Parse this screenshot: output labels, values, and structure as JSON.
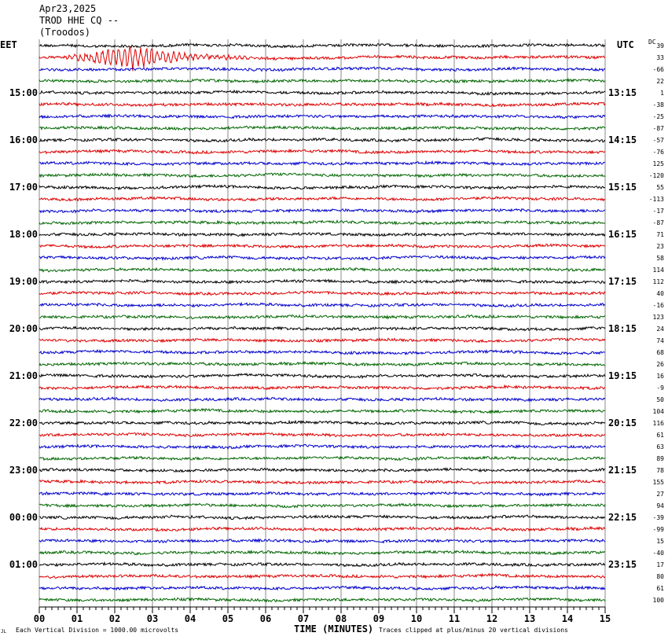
{
  "header": {
    "date": "Apr23,2025",
    "station": "TROD HHE CQ --",
    "location": "(Troodos)"
  },
  "labels": {
    "left_zone": "EET",
    "right_zone": "UTC",
    "dc_label": "DC",
    "xlabel": "TIME (MINUTES)",
    "scale_note": "Each Vertical Division = 1000.00 microvolts",
    "clip_note": "Traces clipped at plus/minus 20 vertical divisions",
    "corner_mark": "JL"
  },
  "colors": {
    "trace_cycle": [
      "#000000",
      "#dd0000",
      "#0000cc",
      "#006600"
    ],
    "grid": "#888888",
    "text": "#000000"
  },
  "chart_data": {
    "type": "line",
    "subtype": "helicorder",
    "x_ticks": [
      "00",
      "01",
      "02",
      "03",
      "04",
      "05",
      "06",
      "07",
      "08",
      "09",
      "10",
      "11",
      "12",
      "13",
      "14",
      "15"
    ],
    "xlim": [
      0,
      15
    ],
    "minutes_per_trace": 15,
    "trace_count": 48,
    "left_hour_labels": [
      "15:00",
      "16:00",
      "17:00",
      "18:00",
      "19:00",
      "20:00",
      "21:00",
      "22:00",
      "23:00",
      "00:00",
      "01:00"
    ],
    "right_hour_labels": [
      "13:15",
      "14:15",
      "15:15",
      "16:15",
      "17:15",
      "18:15",
      "19:15",
      "20:15",
      "21:15",
      "22:15",
      "23:15"
    ],
    "dc_offsets": [
      "39",
      "33",
      "-66",
      "22",
      "1",
      "-38",
      "-25",
      "-87",
      "-57",
      "-76",
      "125",
      "-120",
      "55",
      "-113",
      "-17",
      "-87",
      "71",
      "23",
      "58",
      "114",
      "112",
      "40",
      "-16",
      "123",
      "24",
      "74",
      "68",
      "26",
      "16",
      "-9",
      "50",
      "104",
      "116",
      "61",
      "63",
      "89",
      "78",
      "155",
      "27",
      "94",
      "-39",
      "-99",
      "15",
      "-40",
      "17",
      "80",
      "61",
      "100"
    ],
    "events": [
      {
        "trace": 1,
        "start_minute": 0.6,
        "end_minute": 6.5,
        "peak_minute": 2.5,
        "amplitude_divisions": 1.0
      }
    ],
    "noise_amplitude_divisions": 0.12,
    "grid": true
  }
}
